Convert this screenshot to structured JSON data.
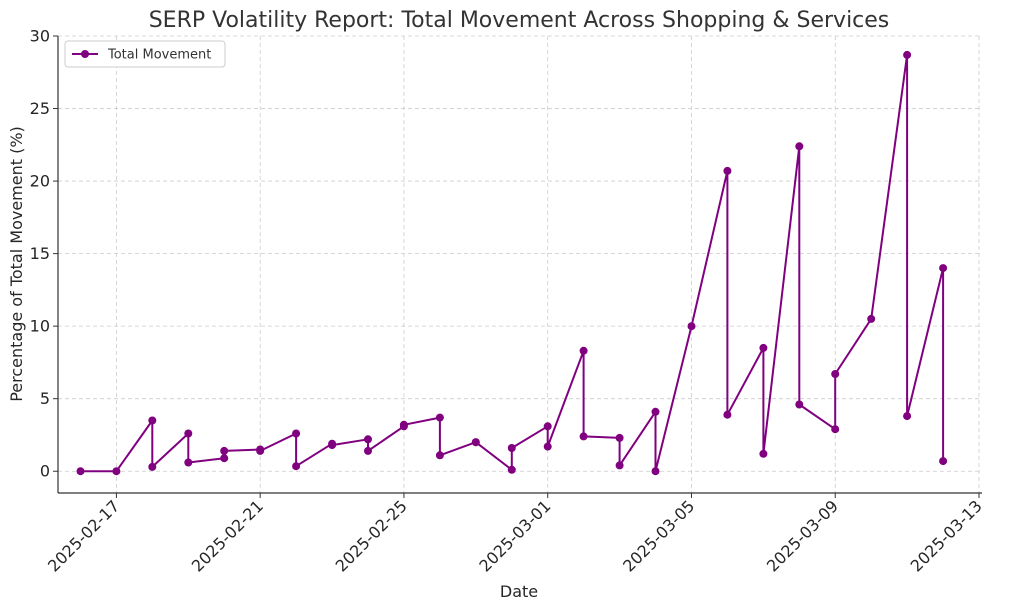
{
  "chart_data": {
    "type": "line",
    "title": "SERP Volatility Report: Total Movement Across Shopping & Services",
    "xlabel": "Date",
    "ylabel": "Percentage of Total Movement (%)",
    "ylim": [
      -1.5,
      30
    ],
    "xlim": [
      "2025-02-15T09:00",
      "2025-03-13T02:00"
    ],
    "grid": true,
    "legend_position": "top-left",
    "x_ticks": [
      "2025-02-17",
      "2025-02-21",
      "2025-02-25",
      "2025-03-01",
      "2025-03-05",
      "2025-03-09",
      "2025-03-13"
    ],
    "y_ticks": [
      0,
      5,
      10,
      15,
      20,
      25,
      30
    ],
    "series": [
      {
        "name": "Total Movement",
        "color": "#800080",
        "x": [
          "2025-02-16",
          "2025-02-17",
          "2025-02-18",
          "2025-02-18",
          "2025-02-19",
          "2025-02-19",
          "2025-02-20",
          "2025-02-20",
          "2025-02-21",
          "2025-02-21",
          "2025-02-22",
          "2025-02-22",
          "2025-02-23",
          "2025-02-23",
          "2025-02-24",
          "2025-02-24",
          "2025-02-25",
          "2025-02-25",
          "2025-02-26",
          "2025-02-26",
          "2025-02-27",
          "2025-02-27",
          "2025-02-28",
          "2025-02-28",
          "2025-03-01",
          "2025-03-01",
          "2025-03-02",
          "2025-03-02",
          "2025-03-03",
          "2025-03-03",
          "2025-03-04",
          "2025-03-04",
          "2025-03-05",
          "2025-03-06",
          "2025-03-06",
          "2025-03-07",
          "2025-03-07",
          "2025-03-08",
          "2025-03-08",
          "2025-03-09",
          "2025-03-09",
          "2025-03-10",
          "2025-03-11",
          "2025-03-11",
          "2025-03-12",
          "2025-03-12"
        ],
        "y": [
          0.0,
          0.0,
          3.5,
          0.3,
          2.6,
          0.6,
          0.9,
          1.4,
          1.5,
          1.4,
          2.6,
          0.35,
          1.9,
          1.8,
          2.2,
          1.4,
          3.1,
          3.2,
          3.7,
          1.1,
          2.0,
          2.0,
          0.1,
          1.6,
          3.1,
          1.7,
          8.3,
          2.4,
          2.3,
          0.4,
          4.1,
          0.0,
          10.0,
          20.7,
          3.9,
          8.5,
          1.2,
          22.4,
          4.6,
          2.9,
          6.7,
          10.5,
          28.7,
          3.8,
          14.0,
          0.7
        ]
      }
    ]
  }
}
